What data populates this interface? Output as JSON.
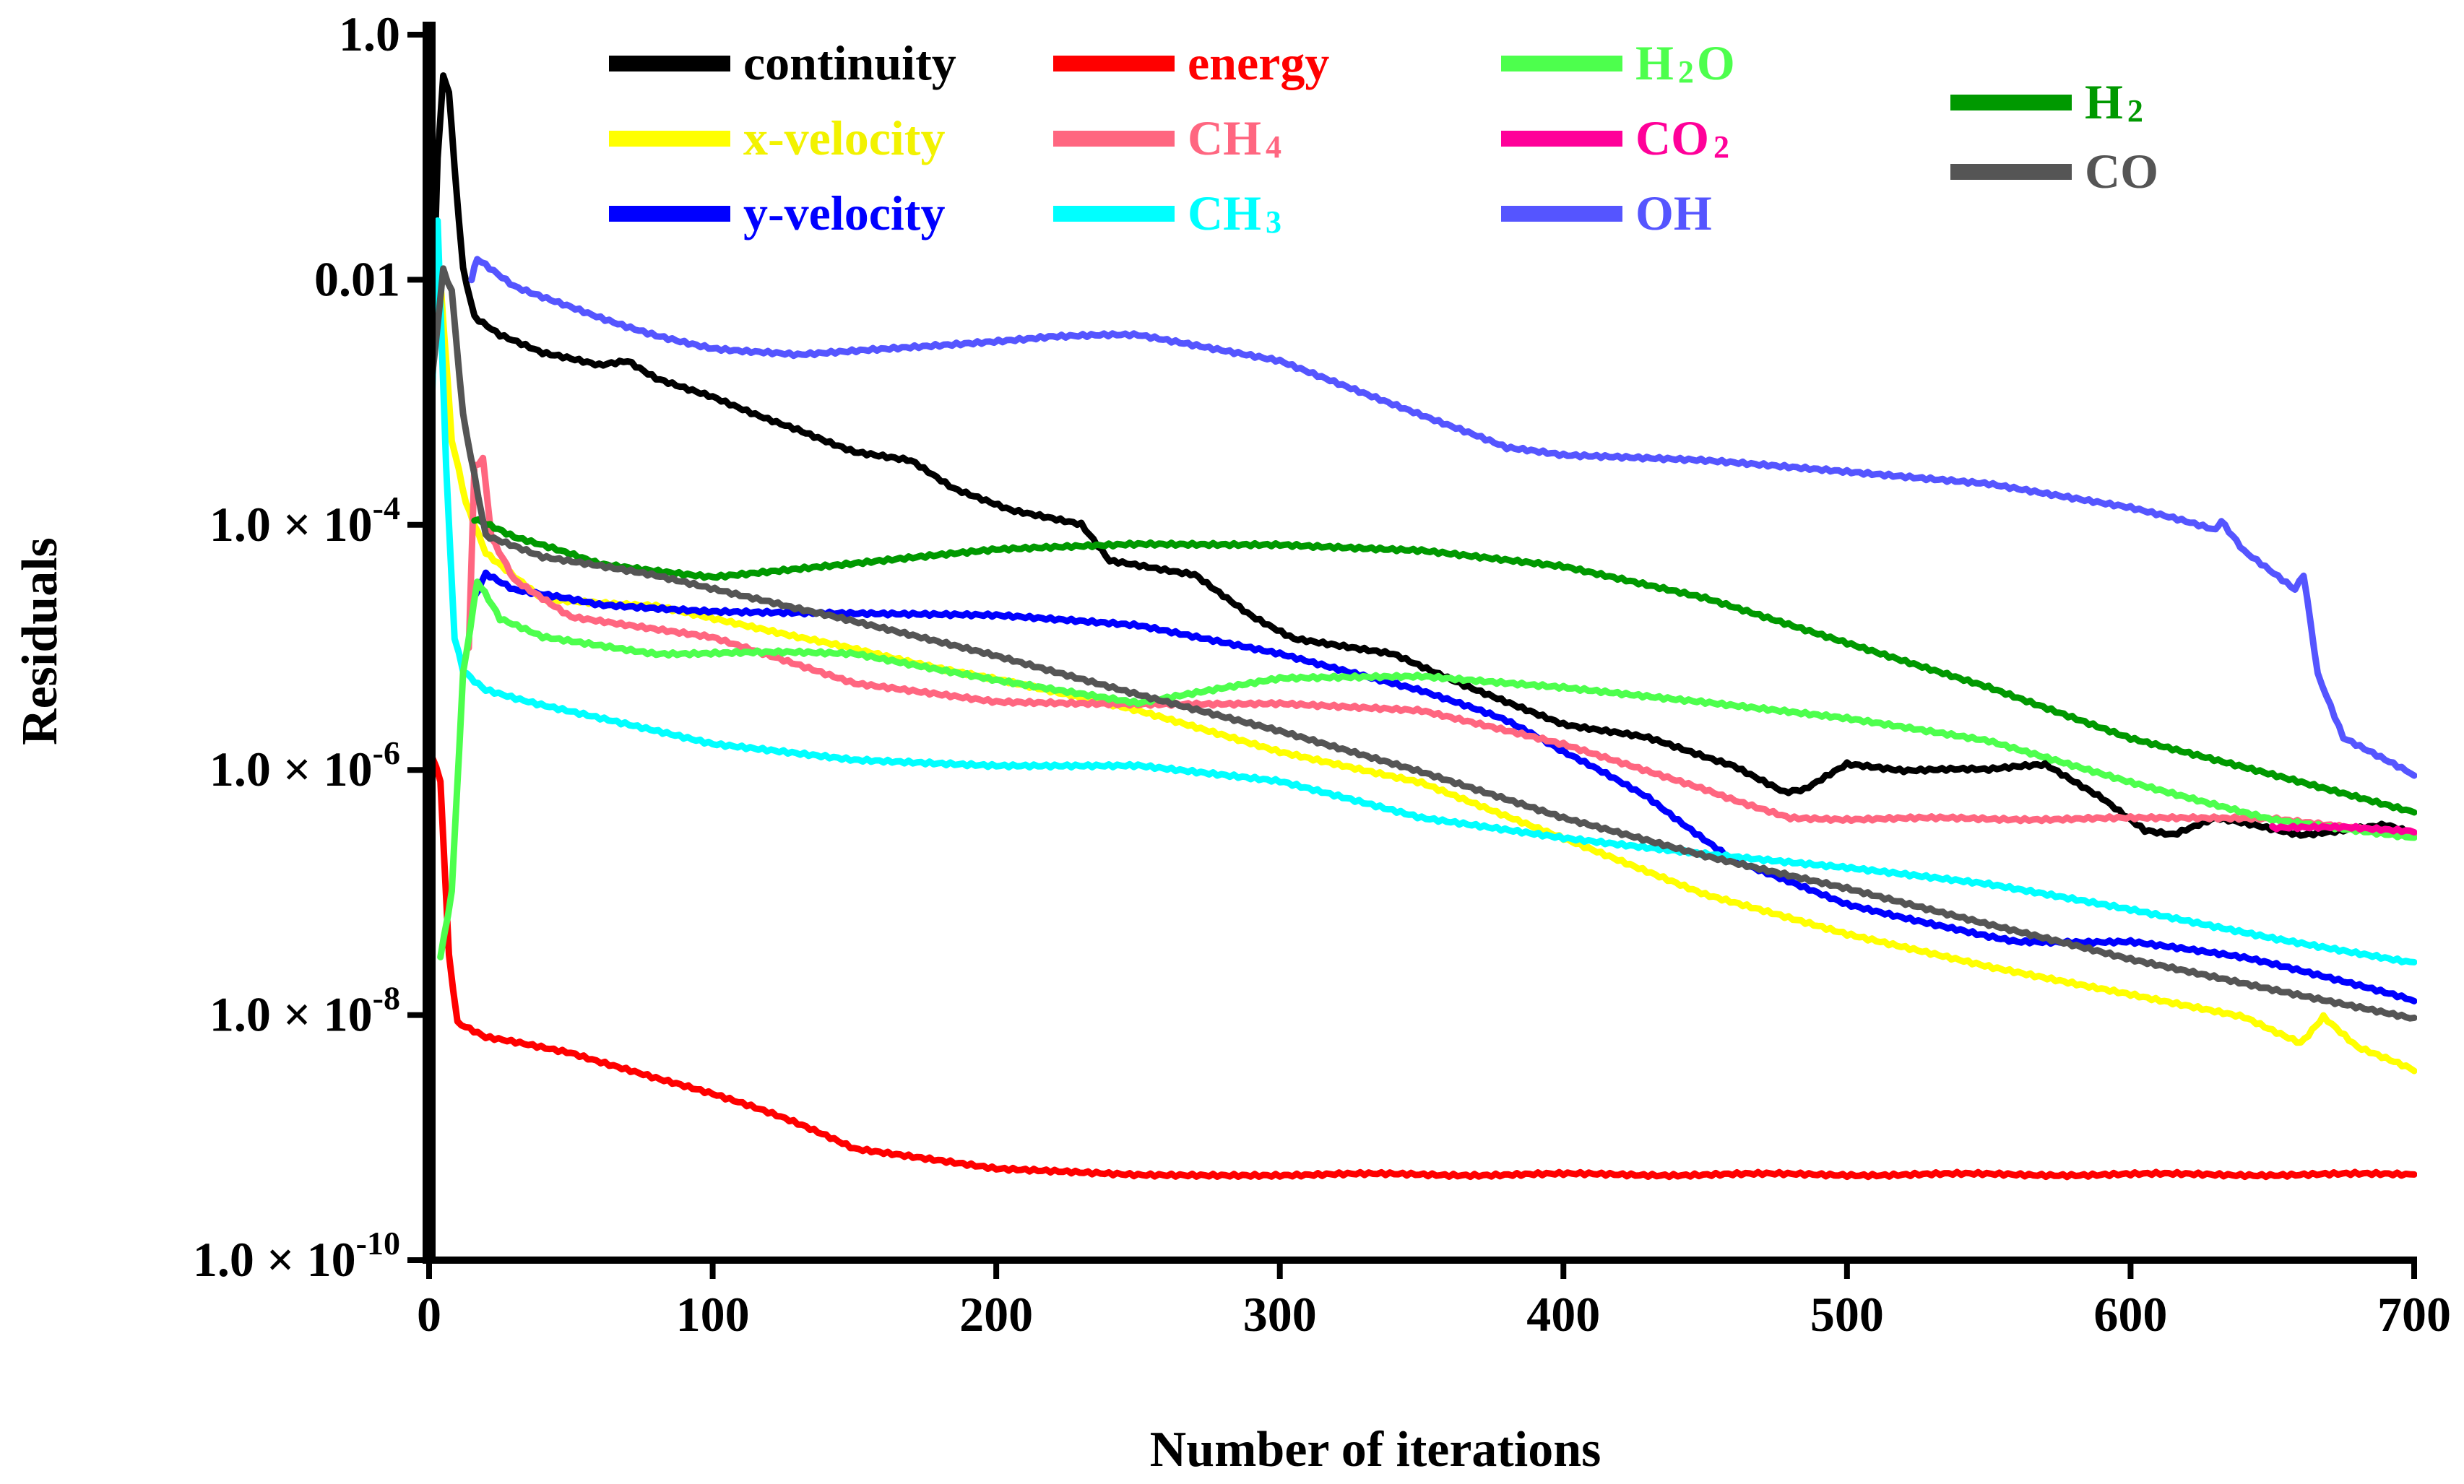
{
  "chart_data": {
    "type": "line",
    "title": "",
    "xlabel": "Number of iterations",
    "ylabel": "Residuals",
    "xlim": [
      0,
      700
    ],
    "ylim_log10": [
      -10,
      0
    ],
    "x_ticks": [
      0,
      100,
      200,
      300,
      400,
      500,
      600,
      700
    ],
    "y_ticks": [
      {
        "value": 1.0,
        "label": "1.0"
      },
      {
        "value": 0.01,
        "label": "0.01"
      },
      {
        "value": 0.0001,
        "base": "1.0 × 10",
        "exp": "-4"
      },
      {
        "value": 1e-06,
        "base": "1.0 × 10",
        "exp": "-6"
      },
      {
        "value": 1e-08,
        "base": "1.0 × 10",
        "exp": "-8"
      },
      {
        "value": 1e-10,
        "base": "1.0 × 10",
        "exp": "-10"
      }
    ],
    "series": [
      {
        "name": "continuity",
        "color": "#000000",
        "label": [
          "continuity"
        ],
        "points": [
          [
            1,
            0.003
          ],
          [
            3,
            0.1
          ],
          [
            5,
            0.45
          ],
          [
            7,
            0.35
          ],
          [
            9,
            0.08
          ],
          [
            12,
            0.012
          ],
          [
            16,
            0.005
          ],
          [
            25,
            0.0035
          ],
          [
            40,
            0.0025
          ],
          [
            60,
            0.002
          ],
          [
            70,
            0.0022
          ],
          [
            80,
            0.0016
          ],
          [
            100,
            0.0011
          ],
          [
            130,
            0.0006
          ],
          [
            150,
            0.0004
          ],
          [
            170,
            0.00033
          ],
          [
            185,
            0.0002
          ],
          [
            205,
            0.00013
          ],
          [
            230,
            0.0001
          ],
          [
            240,
            5e-05
          ],
          [
            270,
            4e-05
          ],
          [
            290,
            1.8e-05
          ],
          [
            305,
            1.2e-05
          ],
          [
            340,
            9e-06
          ],
          [
            365,
            5e-06
          ],
          [
            400,
            2.4e-06
          ],
          [
            430,
            1.8e-06
          ],
          [
            460,
            1.1e-06
          ],
          [
            478,
            6.5e-07
          ],
          [
            485,
            7e-07
          ],
          [
            500,
            1.1e-06
          ],
          [
            520,
            1e-06
          ],
          [
            550,
            1e-06
          ],
          [
            570,
            1.1e-06
          ],
          [
            590,
            6e-07
          ],
          [
            605,
            3.2e-07
          ],
          [
            615,
            3e-07
          ],
          [
            630,
            4e-07
          ],
          [
            660,
            3e-07
          ],
          [
            690,
            3.5e-07
          ],
          [
            700,
            3e-07
          ]
        ]
      },
      {
        "name": "x-velocity",
        "color": "#ffff00",
        "label": [
          "x-velocity"
        ],
        "points": [
          [
            1,
            0.003
          ],
          [
            4,
            0.01
          ],
          [
            8,
            0.0005
          ],
          [
            13,
            0.00015
          ],
          [
            20,
            6e-05
          ],
          [
            40,
            2.5e-05
          ],
          [
            80,
            2.2e-05
          ],
          [
            130,
            1.2e-05
          ],
          [
            200,
            5.5e-06
          ],
          [
            250,
            3e-06
          ],
          [
            300,
            1.4e-06
          ],
          [
            350,
            8e-07
          ],
          [
            400,
            2.8e-07
          ],
          [
            450,
            9.5e-08
          ],
          [
            500,
            4.5e-08
          ],
          [
            550,
            2.5e-08
          ],
          [
            600,
            1.5e-08
          ],
          [
            640,
            9.5e-09
          ],
          [
            650,
            7.5e-09
          ],
          [
            660,
            6e-09
          ],
          [
            668,
            9.5e-09
          ],
          [
            680,
            5.5e-09
          ],
          [
            700,
            3.5e-09
          ]
        ]
      },
      {
        "name": "y-velocity",
        "color": "#0000ff",
        "label": [
          "y-velocity"
        ],
        "points": [
          [
            16,
            2.5e-05
          ],
          [
            20,
            4e-05
          ],
          [
            30,
            3e-05
          ],
          [
            60,
            2.2e-05
          ],
          [
            100,
            2e-05
          ],
          [
            150,
            1.9e-05
          ],
          [
            200,
            1.8e-05
          ],
          [
            250,
            1.5e-05
          ],
          [
            300,
            9e-06
          ],
          [
            350,
            4.5e-06
          ],
          [
            380,
            2.5e-06
          ],
          [
            400,
            1.4e-06
          ],
          [
            430,
            6e-07
          ],
          [
            460,
            1.8e-07
          ],
          [
            500,
            8e-08
          ],
          [
            540,
            5e-08
          ],
          [
            560,
            4e-08
          ],
          [
            600,
            4e-08
          ],
          [
            640,
            2.9e-08
          ],
          [
            660,
            2.3e-08
          ],
          [
            700,
            1.3e-08
          ]
        ]
      },
      {
        "name": "energy",
        "color": "#ff0000",
        "label": [
          "energy"
        ],
        "points": [
          [
            1,
            1.3e-06
          ],
          [
            4,
            8e-07
          ],
          [
            7,
            3e-08
          ],
          [
            10,
            8.5e-09
          ],
          [
            20,
            6.5e-09
          ],
          [
            50,
            5e-09
          ],
          [
            80,
            3e-09
          ],
          [
            100,
            2.3e-09
          ],
          [
            130,
            1.3e-09
          ],
          [
            150,
            8e-10
          ],
          [
            200,
            5.5e-10
          ],
          [
            250,
            5e-10
          ],
          [
            300,
            5e-10
          ],
          [
            400,
            5e-10
          ],
          [
            500,
            5e-10
          ],
          [
            600,
            5e-10
          ],
          [
            700,
            5e-10
          ]
        ]
      },
      {
        "name": "CH4",
        "color": "#ff6680",
        "label": [
          "CH",
          "4",
          ""
        ],
        "points": [
          [
            14,
            1e-05
          ],
          [
            16,
            0.0003
          ],
          [
            19,
            0.00035
          ],
          [
            22,
            8e-05
          ],
          [
            30,
            3.5e-05
          ],
          [
            50,
            1.8e-05
          ],
          [
            100,
            1.2e-05
          ],
          [
            150,
            5e-06
          ],
          [
            200,
            3.6e-06
          ],
          [
            250,
            3.5e-06
          ],
          [
            300,
            3.5e-06
          ],
          [
            350,
            3e-06
          ],
          [
            400,
            1.6e-06
          ],
          [
            450,
            7e-07
          ],
          [
            480,
            4e-07
          ],
          [
            500,
            4e-07
          ],
          [
            600,
            4e-07
          ],
          [
            650,
            4e-07
          ],
          [
            700,
            3e-07
          ]
        ]
      },
      {
        "name": "CH3",
        "color": "#00ffff",
        "label": [
          "CH",
          "3",
          ""
        ],
        "points": [
          [
            1,
            0.001
          ],
          [
            3,
            0.03
          ],
          [
            6,
            0.0003
          ],
          [
            9,
            1.2e-05
          ],
          [
            12,
            6.5e-06
          ],
          [
            20,
            4.5e-06
          ],
          [
            50,
            3e-06
          ],
          [
            100,
            1.6e-06
          ],
          [
            150,
            1.2e-06
          ],
          [
            200,
            1.1e-06
          ],
          [
            250,
            1.1e-06
          ],
          [
            300,
            8e-07
          ],
          [
            350,
            4e-07
          ],
          [
            400,
            2.8e-07
          ],
          [
            450,
            2.1e-07
          ],
          [
            500,
            1.6e-07
          ],
          [
            550,
            1.15e-07
          ],
          [
            600,
            7.2e-08
          ],
          [
            650,
            4.3e-08
          ],
          [
            700,
            2.7e-08
          ]
        ]
      },
      {
        "name": "H2O",
        "color": "#4dff4d",
        "label": [
          "H",
          "2",
          "O"
        ],
        "points": [
          [
            4,
            3e-08
          ],
          [
            8,
            1e-07
          ],
          [
            12,
            6e-06
          ],
          [
            17,
            3.5e-05
          ],
          [
            25,
            1.7e-05
          ],
          [
            40,
            1.2e-05
          ],
          [
            80,
            9e-06
          ],
          [
            150,
            9e-06
          ],
          [
            200,
            5.5e-06
          ],
          [
            250,
            3.5e-06
          ],
          [
            300,
            5.5e-06
          ],
          [
            350,
            5.8e-06
          ],
          [
            400,
            4.8e-06
          ],
          [
            450,
            3.6e-06
          ],
          [
            500,
            2.6e-06
          ],
          [
            550,
            1.7e-06
          ],
          [
            600,
            8e-07
          ],
          [
            650,
            4e-07
          ],
          [
            700,
            2.8e-07
          ]
        ]
      },
      {
        "name": "CO2",
        "color": "#ff0099",
        "label": [
          "CO",
          "2",
          ""
        ],
        "points": [
          [
            650,
            3.4e-07
          ],
          [
            675,
            3.4e-07
          ],
          [
            700,
            3.1e-07
          ]
        ]
      },
      {
        "name": "OH",
        "color": "#5555ff",
        "label": [
          "OH"
        ],
        "points": [
          [
            15,
            0.01
          ],
          [
            17,
            0.015
          ],
          [
            30,
            0.009
          ],
          [
            50,
            0.006
          ],
          [
            80,
            0.0035
          ],
          [
            100,
            0.0028
          ],
          [
            130,
            0.0024
          ],
          [
            180,
            0.0029
          ],
          [
            220,
            0.0035
          ],
          [
            250,
            0.0035
          ],
          [
            300,
            0.0022
          ],
          [
            350,
            0.0008
          ],
          [
            380,
            0.00042
          ],
          [
            400,
            0.00037
          ],
          [
            450,
            0.00033
          ],
          [
            500,
            0.00027
          ],
          [
            550,
            0.00022
          ],
          [
            600,
            0.00014
          ],
          [
            630,
            9e-05
          ],
          [
            632,
            0.00011
          ],
          [
            640,
            6e-05
          ],
          [
            658,
            3e-05
          ],
          [
            661,
            4e-05
          ],
          [
            666,
            6e-06
          ],
          [
            675,
            1.8e-06
          ],
          [
            700,
            9e-07
          ]
        ]
      },
      {
        "name": "H2",
        "color": "#009900",
        "label": [
          "H",
          "2",
          ""
        ],
        "points": [
          [
            16,
            0.00011
          ],
          [
            30,
            8e-05
          ],
          [
            60,
            4.8e-05
          ],
          [
            100,
            3.8e-05
          ],
          [
            150,
            4.8e-05
          ],
          [
            200,
            6.2e-05
          ],
          [
            250,
            7e-05
          ],
          [
            300,
            7e-05
          ],
          [
            350,
            6.2e-05
          ],
          [
            400,
            4.5e-05
          ],
          [
            450,
            2.5e-05
          ],
          [
            500,
            1.1e-05
          ],
          [
            550,
            4.8e-06
          ],
          [
            600,
            1.8e-06
          ],
          [
            650,
            9e-07
          ],
          [
            700,
            4.5e-07
          ]
        ]
      },
      {
        "name": "CO",
        "color": "#555555",
        "label": [
          "CO"
        ],
        "points": [
          [
            1,
            0.0015
          ],
          [
            5,
            0.012
          ],
          [
            8,
            0.008
          ],
          [
            12,
            0.0008
          ],
          [
            20,
            8e-05
          ],
          [
            40,
            5.5e-05
          ],
          [
            80,
            3.8e-05
          ],
          [
            120,
            2.4e-05
          ],
          [
            150,
            1.6e-05
          ],
          [
            200,
            8.5e-06
          ],
          [
            250,
            4.2e-06
          ],
          [
            300,
            2.1e-06
          ],
          [
            350,
            9.5e-07
          ],
          [
            400,
            4e-07
          ],
          [
            450,
            2e-07
          ],
          [
            500,
            1.1e-07
          ],
          [
            550,
            5.5e-08
          ],
          [
            600,
            2.8e-08
          ],
          [
            650,
            1.6e-08
          ],
          [
            700,
            9.5e-09
          ]
        ]
      }
    ],
    "legend_position": "top"
  }
}
